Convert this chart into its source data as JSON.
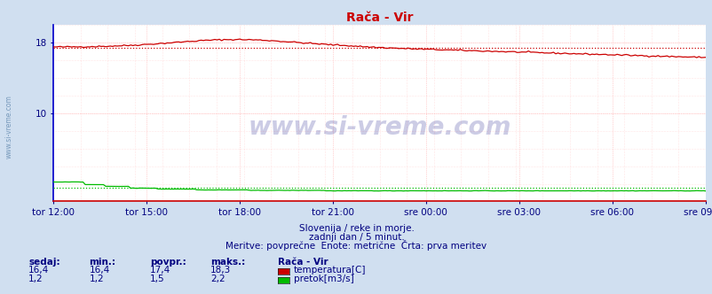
{
  "title": "Rača - Vir",
  "bg_color": "#d0dff0",
  "plot_bg_color": "#ffffff",
  "grid_color_major": "#ffaaaa",
  "grid_color_minor": "#ffcccc",
  "x_labels": [
    "tor 12:00",
    "tor 15:00",
    "tor 18:00",
    "tor 21:00",
    "sre 00:00",
    "sre 03:00",
    "sre 06:00",
    "sre 09:00"
  ],
  "x_ticks_norm": [
    0.0,
    0.143,
    0.286,
    0.429,
    0.571,
    0.714,
    0.857,
    1.0
  ],
  "ylim": [
    0,
    20
  ],
  "ytick_vals": [
    10,
    18
  ],
  "ytick_labels": [
    "10",
    "18"
  ],
  "temp_color": "#cc0000",
  "pretok_color": "#00aa00",
  "avg_temp": 17.4,
  "avg_pretok": 1.5,
  "subtitle1": "Slovenija / reke in morje.",
  "subtitle2": "zadnji dan / 5 minut.",
  "subtitle3": "Meritve: povprečne  Enote: metrične  Črta: prva meritev",
  "legend_title": "Rača - Vir",
  "legend_items": [
    {
      "color": "#cc0000",
      "label": "temperatura[C]"
    },
    {
      "color": "#00bb00",
      "label": "pretok[m3/s]"
    }
  ],
  "table_headers": [
    "sedaj:",
    "min.:",
    "povpr.:",
    "maks.:"
  ],
  "table_row1": [
    "16,4",
    "16,4",
    "17,4",
    "18,3"
  ],
  "table_row2": [
    "1,2",
    "1,2",
    "1,5",
    "2,2"
  ],
  "watermark": "www.si-vreme.com",
  "left_label": "www.si-vreme.com",
  "spine_left_color": "#0000cc",
  "spine_bottom_color": "#cc0000",
  "axis_label_color": "#000080",
  "text_color": "#000080"
}
